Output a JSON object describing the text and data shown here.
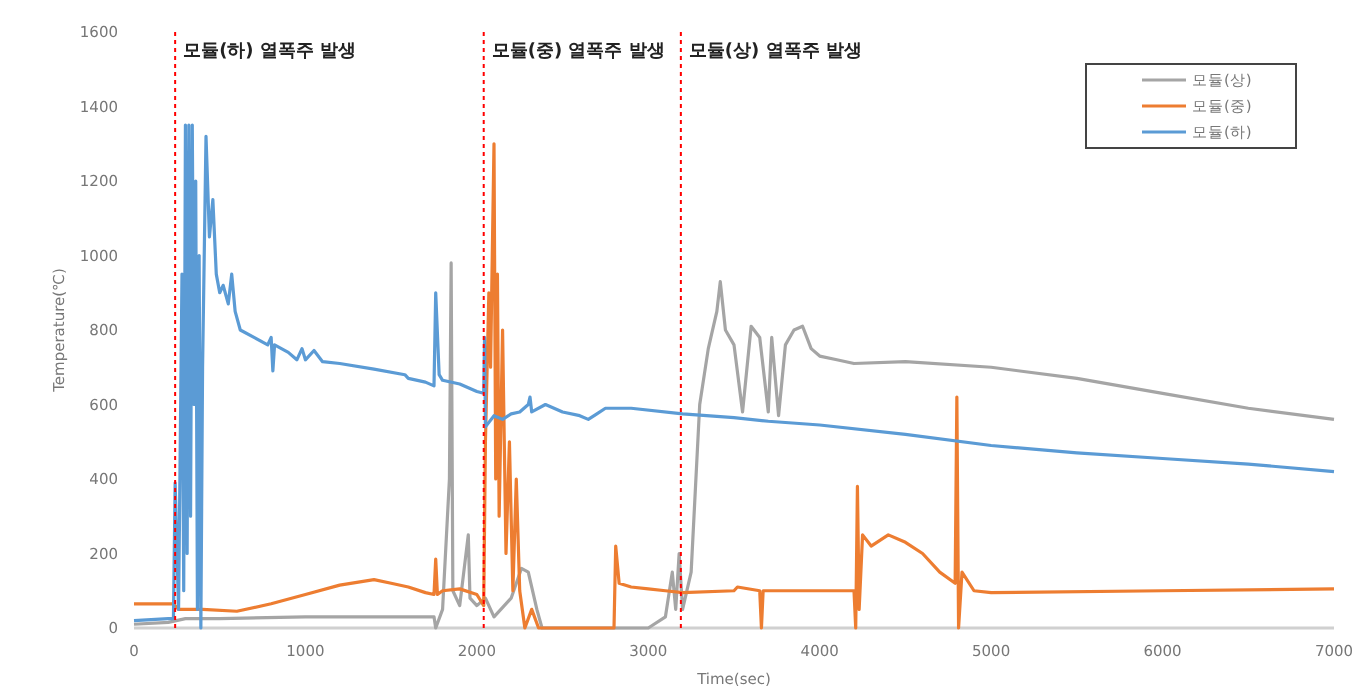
{
  "chart_data": {
    "type": "line",
    "xlabel": "Time(sec)",
    "ylabel": "Temperature(℃)",
    "xlim": [
      0,
      7000
    ],
    "ylim": [
      0,
      1600
    ],
    "xticks": [
      0,
      1000,
      2000,
      3000,
      4000,
      5000,
      6000,
      7000
    ],
    "yticks": [
      0,
      200,
      400,
      600,
      800,
      1000,
      1200,
      1400,
      1600
    ],
    "grid": false,
    "legend": "top right",
    "marker": "none",
    "line_style": "solid",
    "ref_lines": [
      {
        "axis": "x",
        "value": 240,
        "label": "모듈(하) 열폭주 발생",
        "color": "#ff0000",
        "line_style": "dotted"
      },
      {
        "axis": "x",
        "value": 2040,
        "label": "모듈(중) 열폭주 발생",
        "color": "#ff0000",
        "line_style": "dotted"
      },
      {
        "axis": "x",
        "value": 3190,
        "label": "모듈(상) 열폭주 발생",
        "color": "#ff0000",
        "line_style": "dotted"
      }
    ],
    "series": [
      {
        "name": "모듈(상)",
        "color": "#a5a5a5",
        "x": [
          0,
          200,
          300,
          500,
          1000,
          1500,
          1750,
          1760,
          1800,
          1840,
          1850,
          1860,
          1900,
          1950,
          1960,
          2000,
          2050,
          2100,
          2200,
          2260,
          2300,
          2350,
          2380,
          3000,
          3100,
          3140,
          3160,
          3180,
          3200,
          3250,
          3300,
          3350,
          3400,
          3420,
          3450,
          3500,
          3550,
          3600,
          3650,
          3700,
          3720,
          3760,
          3800,
          3850,
          3900,
          3950,
          4000,
          4100,
          4200,
          4500,
          5000,
          5500,
          6000,
          6500,
          7000
        ],
        "values": [
          10,
          15,
          25,
          25,
          30,
          30,
          30,
          0,
          50,
          400,
          980,
          100,
          60,
          250,
          80,
          60,
          80,
          30,
          80,
          160,
          150,
          50,
          0,
          0,
          30,
          150,
          50,
          200,
          50,
          150,
          600,
          750,
          850,
          930,
          800,
          760,
          580,
          810,
          780,
          580,
          780,
          570,
          760,
          800,
          810,
          750,
          730,
          720,
          710,
          715,
          700,
          670,
          630,
          590,
          560
        ]
      },
      {
        "name": "모듈(중)",
        "color": "#ed7d31",
        "x": [
          0,
          230,
          260,
          400,
          600,
          800,
          1000,
          1200,
          1400,
          1500,
          1600,
          1700,
          1750,
          1760,
          1770,
          1800,
          1900,
          2000,
          2040,
          2050,
          2070,
          2080,
          2100,
          2110,
          2120,
          2130,
          2150,
          2170,
          2190,
          2210,
          2230,
          2250,
          2280,
          2320,
          2360,
          2800,
          2810,
          2830,
          2900,
          3000,
          3100,
          3200,
          3500,
          3520,
          3650,
          3660,
          3670,
          4200,
          4210,
          4220,
          4230,
          4250,
          4300,
          4400,
          4500,
          4600,
          4700,
          4790,
          4800,
          4810,
          4830,
          4900,
          5000,
          6000,
          7000
        ],
        "values": [
          65,
          65,
          50,
          50,
          45,
          65,
          90,
          115,
          130,
          120,
          110,
          95,
          90,
          185,
          90,
          100,
          105,
          90,
          60,
          500,
          900,
          700,
          1300,
          400,
          950,
          300,
          800,
          200,
          500,
          100,
          400,
          100,
          0,
          50,
          0,
          0,
          220,
          120,
          110,
          105,
          100,
          95,
          100,
          110,
          100,
          0,
          100,
          100,
          0,
          380,
          50,
          250,
          220,
          250,
          230,
          200,
          150,
          120,
          620,
          0,
          150,
          100,
          95,
          100,
          105
        ]
      },
      {
        "name": "모듈(하)",
        "color": "#5b9bd5",
        "x": [
          0,
          200,
          230,
          240,
          260,
          280,
          290,
          300,
          310,
          320,
          330,
          340,
          350,
          360,
          370,
          380,
          390,
          400,
          420,
          440,
          460,
          480,
          500,
          520,
          550,
          570,
          590,
          620,
          700,
          780,
          800,
          810,
          820,
          900,
          950,
          980,
          1000,
          1050,
          1100,
          1200,
          1400,
          1580,
          1600,
          1700,
          1750,
          1760,
          1780,
          1800,
          1900,
          2000,
          2040,
          2045,
          2050,
          2100,
          2150,
          2200,
          2250,
          2300,
          2310,
          2320,
          2400,
          2500,
          2600,
          2650,
          2700,
          2750,
          2900,
          3200,
          3500,
          3700,
          4000,
          4500,
          5000,
          5500,
          6000,
          6500,
          7000
        ],
        "values": [
          20,
          25,
          25,
          390,
          50,
          950,
          100,
          1350,
          200,
          1350,
          300,
          1350,
          600,
          1200,
          50,
          1000,
          0,
          700,
          1320,
          1050,
          1150,
          950,
          900,
          920,
          870,
          950,
          850,
          800,
          780,
          760,
          780,
          690,
          760,
          740,
          720,
          750,
          720,
          745,
          715,
          710,
          695,
          680,
          670,
          660,
          650,
          900,
          680,
          665,
          655,
          635,
          630,
          780,
          540,
          570,
          560,
          575,
          580,
          600,
          620,
          580,
          600,
          580,
          570,
          560,
          575,
          590,
          590,
          575,
          565,
          555,
          545,
          520,
          490,
          470,
          455,
          440,
          420
        ]
      }
    ]
  }
}
